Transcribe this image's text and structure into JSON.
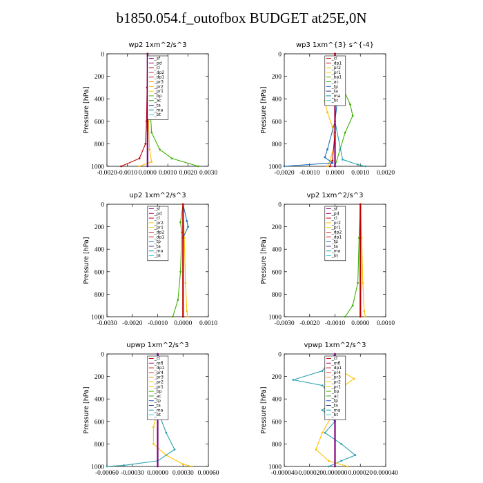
{
  "title": "b1850.054.f_outofbox  BUDGET at25E,0N",
  "chart_data": [
    {
      "type": "line",
      "title": "wp2   1xm^2/s^3",
      "ylabel": "Pressure  [hPa]",
      "xlim": [
        -0.002,
        0.003
      ],
      "ylim": [
        1000,
        0
      ],
      "xticks": [
        "-0.0020",
        "-0.0010",
        "0.0000",
        "0.0010",
        "0.0020",
        "0.0030"
      ],
      "xtick_values": [
        -0.002,
        -0.001,
        0,
        0.001,
        0.002,
        0.003
      ],
      "yticks": [
        "0",
        "200",
        "400",
        "600",
        "800",
        "1000"
      ],
      "ytick_values": [
        0,
        200,
        400,
        600,
        800,
        1000
      ],
      "legend": [
        "_sf",
        "_pd",
        "_cl",
        "_dp2",
        "_dp1",
        "_pr3",
        "_pr2",
        "_pr1",
        "_bp",
        "_ac",
        "_ta",
        "_ma",
        "_bt"
      ],
      "series": [
        {
          "name": "_pr2",
          "color": "#ffc000",
          "points": [
            [
              0,
              0
            ],
            [
              3e-05,
              300
            ],
            [
              5e-05,
              600
            ],
            [
              0.0001,
              850
            ],
            [
              0.0002,
              960
            ],
            [
              -0.0004,
              1000
            ]
          ]
        },
        {
          "name": "_ac",
          "color": "#3cb000",
          "points": [
            [
              2e-05,
              0
            ],
            [
              0.0001,
              400
            ],
            [
              0.0002,
              700
            ],
            [
              0.0006,
              850
            ],
            [
              0.0012,
              930
            ],
            [
              0.0025,
              1000
            ]
          ]
        },
        {
          "name": "_dp2",
          "color": "#c00000",
          "points": [
            [
              0,
              0
            ],
            [
              -2e-05,
              300
            ],
            [
              -5e-05,
              600
            ],
            [
              -0.0001,
              800
            ],
            [
              -0.0004,
              930
            ],
            [
              -0.0013,
              1000
            ]
          ]
        },
        {
          "name": "_sf",
          "color": "#800080",
          "points": [
            [
              0,
              0
            ],
            [
              0,
              1000
            ]
          ]
        }
      ]
    },
    {
      "type": "line",
      "title": "wp3   1xm^{3} s^{-4}",
      "ylabel": "Pressure  [hPa]",
      "xlim": [
        -0.002,
        0.002
      ],
      "ylim": [
        1000,
        0
      ],
      "xticks": [
        "-0.0020",
        "-0.0010",
        "0.0000",
        "0.0010",
        "0.0020"
      ],
      "xtick_values": [
        -0.002,
        -0.001,
        0,
        0.001,
        0.002
      ],
      "yticks": [
        "0",
        "200",
        "400",
        "600",
        "800",
        "1000"
      ],
      "ytick_values": [
        0,
        200,
        400,
        600,
        800,
        1000
      ],
      "legend": [
        "_cl",
        "_dp1",
        "_pr2",
        "_pr1",
        "_bp1",
        "_ac",
        "_tp",
        "_ta",
        "_ma",
        "_bt"
      ],
      "series": [
        {
          "name": "_pr2",
          "color": "#ffc000",
          "points": [
            [
              0,
              0
            ],
            [
              -0.0001,
              150
            ],
            [
              -0.0003,
              300
            ],
            [
              -0.0004,
              420
            ],
            [
              -0.0003,
              520
            ],
            [
              -0.0001,
              650
            ],
            [
              0,
              800
            ],
            [
              -0.0002,
              950
            ],
            [
              -0.0003,
              1000
            ]
          ]
        },
        {
          "name": "_ac",
          "color": "#3cb000",
          "points": [
            [
              0,
              0
            ],
            [
              0.0001,
              150
            ],
            [
              0.0003,
              300
            ],
            [
              0.0006,
              450
            ],
            [
              0.0007,
              550
            ],
            [
              0.0004,
              700
            ],
            [
              0.0002,
              850
            ],
            [
              0,
              1000
            ]
          ]
        },
        {
          "name": "_ta",
          "color": "#1a6fc0",
          "points": [
            [
              0,
              0
            ],
            [
              0.0001,
              120
            ],
            [
              0.0002,
              250
            ],
            [
              0.0001,
              400
            ],
            [
              0,
              600
            ],
            [
              -0.0003,
              850
            ],
            [
              -0.0004,
              920
            ],
            [
              -0.0001,
              970
            ],
            [
              -0.002,
              1000
            ]
          ]
        },
        {
          "name": "_ma",
          "color": "#2aa0b0",
          "points": [
            [
              0,
              0
            ],
            [
              0,
              600
            ],
            [
              0.0003,
              940
            ],
            [
              0.0009,
              985
            ],
            [
              0.0012,
              1000
            ]
          ]
        },
        {
          "name": "_cl",
          "color": "#800080",
          "points": [
            [
              0,
              0
            ],
            [
              0,
              1000
            ]
          ]
        },
        {
          "name": "_dp1",
          "color": "#c00000",
          "points": [
            [
              0,
              0
            ],
            [
              0,
              700
            ],
            [
              -0.0001,
              950
            ],
            [
              -0.0002,
              1000
            ]
          ]
        }
      ]
    },
    {
      "type": "line",
      "title": "up2   1xm^2/s^3",
      "ylabel": "Pressure  [hPa]",
      "xlim": [
        -0.003,
        0.001
      ],
      "ylim": [
        1000,
        0
      ],
      "xticks": [
        "-0.0030",
        "-0.0020",
        "-0.0010",
        "0.0000",
        "0.0010"
      ],
      "xtick_values": [
        -0.003,
        -0.002,
        -0.001,
        0,
        0.001
      ],
      "yticks": [
        "0",
        "200",
        "400",
        "600",
        "800",
        "1000"
      ],
      "ytick_values": [
        0,
        200,
        400,
        600,
        800,
        1000
      ],
      "legend": [
        "_sf",
        "_pd",
        "_cl",
        "_pr2",
        "_pr1",
        "_dp2",
        "_dp1",
        "_tp",
        "_ta",
        "_ma",
        "_bt"
      ],
      "series": [
        {
          "name": "_pr2",
          "color": "#ffc000",
          "points": [
            [
              0,
              0
            ],
            [
              5e-05,
              300
            ],
            [
              0.0001,
              700
            ],
            [
              0.00015,
              950
            ],
            [
              0.00018,
              1000
            ]
          ]
        },
        {
          "name": "_dp2",
          "color": "#3cb000",
          "points": [
            [
              0,
              0
            ],
            [
              -0.0001,
              160
            ],
            [
              -5e-05,
              250
            ],
            [
              -0.0001,
              600
            ],
            [
              -0.0002,
              850
            ],
            [
              -0.0004,
              1000
            ]
          ]
        },
        {
          "name": "_ta",
          "color": "#1a6fc0",
          "points": [
            [
              0,
              0
            ],
            [
              0.00015,
              150
            ],
            [
              0.0002,
              200
            ],
            [
              0,
              300
            ],
            [
              0,
              1000
            ]
          ]
        },
        {
          "name": "_sf",
          "color": "#c00000",
          "points": [
            [
              0,
              0
            ],
            [
              0,
              1000
            ]
          ]
        }
      ]
    },
    {
      "type": "line",
      "title": "vp2   1xm^2/s^3",
      "ylabel": "Pressure  [hPa]",
      "xlim": [
        -0.003,
        0.001
      ],
      "ylim": [
        1000,
        0
      ],
      "xticks": [
        "-0.0030",
        "-0.0020",
        "-0.0010",
        "0.0000",
        "0.0010"
      ],
      "xtick_values": [
        -0.003,
        -0.002,
        -0.001,
        0,
        0.001
      ],
      "yticks": [
        "0",
        "200",
        "400",
        "600",
        "800",
        "1000"
      ],
      "ytick_values": [
        0,
        200,
        400,
        600,
        800,
        1000
      ],
      "legend": [
        "_sf",
        "_pd",
        "_cl",
        "_pr2",
        "_pr1",
        "_dp2",
        "_dp1",
        "_tp",
        "_ta",
        "_ma",
        "_bt"
      ],
      "series": [
        {
          "name": "_pr2",
          "color": "#ffc000",
          "points": [
            [
              0,
              0
            ],
            [
              5e-05,
              300
            ],
            [
              0.0001,
              700
            ],
            [
              0.00015,
              950
            ],
            [
              0.0002,
              1000
            ]
          ]
        },
        {
          "name": "_dp2",
          "color": "#3cb000",
          "points": [
            [
              0,
              0
            ],
            [
              -5e-05,
              300
            ],
            [
              -0.0001,
              700
            ],
            [
              -0.0003,
              900
            ],
            [
              -0.0006,
              1000
            ]
          ]
        },
        {
          "name": "_sf",
          "color": "#c00000",
          "points": [
            [
              0,
              0
            ],
            [
              0,
              1000
            ]
          ]
        }
      ]
    },
    {
      "type": "line",
      "title": "upwp   1xm^2/s^3",
      "ylabel": "Pressure  [hPa]",
      "xlim": [
        -0.0006,
        0.0006
      ],
      "ylim": [
        1000,
        0
      ],
      "xticks": [
        "-0.00060",
        "-0.00030",
        "0.00000",
        "0.00030",
        "0.00060"
      ],
      "xtick_values": [
        -0.0006,
        -0.0003,
        0,
        0.0003,
        0.0006
      ],
      "yticks": [
        "0",
        "200",
        "400",
        "600",
        "800",
        "1000"
      ],
      "ytick_values": [
        0,
        200,
        400,
        600,
        800,
        1000
      ],
      "legend": [
        "_cl",
        "_mfl",
        "_dp1",
        "_pr4",
        "_pr3",
        "_pr2",
        "_pr1",
        "_bp",
        "_ac",
        "_tp",
        "_ta",
        "_ma",
        "_bt"
      ],
      "series": [
        {
          "name": "_pr2",
          "color": "#ffc000",
          "points": [
            [
              0,
              0
            ],
            [
              -5e-05,
              150
            ],
            [
              -0.0001,
              220
            ],
            [
              -5e-05,
              300
            ],
            [
              0,
              500
            ],
            [
              -5e-05,
              650
            ],
            [
              -5e-05,
              800
            ],
            [
              0.0001,
              900
            ],
            [
              0.0003,
              980
            ],
            [
              0.0004,
              1000
            ]
          ]
        },
        {
          "name": "_ta",
          "color": "#2aa0b0",
          "points": [
            [
              0,
              0
            ],
            [
              0.0001,
              150
            ],
            [
              0.0001,
              250
            ],
            [
              0,
              350
            ],
            [
              0,
              500
            ],
            [
              0.0001,
              700
            ],
            [
              0.0002,
              850
            ],
            [
              0,
              950
            ],
            [
              -0.0004,
              990
            ],
            [
              -0.0006,
              1000
            ]
          ]
        },
        {
          "name": "_cl",
          "color": "#800080",
          "points": [
            [
              0,
              0
            ],
            [
              0,
              1000
            ]
          ]
        }
      ]
    },
    {
      "type": "line",
      "title": "vpwp   1xm^2/s^3",
      "ylabel": "Pressure  [hPa]",
      "xlim": [
        -4e-05,
        4e-05
      ],
      "ylim": [
        1000,
        0
      ],
      "xticks": [
        "-0.000040",
        "-0.000020",
        "0.000000",
        "0.000020",
        "0.000040"
      ],
      "xtick_values": [
        -4e-05,
        -2e-05,
        0,
        2e-05,
        4e-05
      ],
      "yticks": [
        "0",
        "200",
        "400",
        "600",
        "800",
        "1000"
      ],
      "ytick_values": [
        0,
        200,
        400,
        600,
        800,
        1000
      ],
      "legend": [
        "_cl",
        "_mfl",
        "_dp1",
        "_pr4",
        "_pr3",
        "_pr2",
        "_pr1",
        "_bp",
        "_ac",
        "_tp",
        "_ta",
        "_ma",
        "_bt"
      ],
      "series": [
        {
          "name": "_ta",
          "color": "#2aa0b0",
          "points": [
            [
              0,
              0
            ],
            [
              -1e-05,
              150
            ],
            [
              -3.3e-05,
              230
            ],
            [
              -1e-05,
              280
            ],
            [
              0,
              400
            ],
            [
              -1e-05,
              500
            ],
            [
              0,
              600
            ],
            [
              -8e-06,
              700
            ],
            [
              5e-06,
              800
            ],
            [
              1.6e-05,
              900
            ],
            [
              5e-06,
              950
            ],
            [
              -5e-06,
              1000
            ]
          ]
        },
        {
          "name": "_pr2",
          "color": "#ffc000",
          "points": [
            [
              0,
              0
            ],
            [
              5e-06,
              150
            ],
            [
              1.5e-05,
              220
            ],
            [
              5e-06,
              300
            ],
            [
              0,
              500
            ],
            [
              -1e-05,
              700
            ],
            [
              -1.5e-05,
              850
            ],
            [
              -5e-06,
              950
            ],
            [
              1e-05,
              1000
            ]
          ]
        },
        {
          "name": "_cl",
          "color": "#800080",
          "points": [
            [
              0,
              0
            ],
            [
              0,
              1000
            ]
          ]
        }
      ]
    }
  ]
}
